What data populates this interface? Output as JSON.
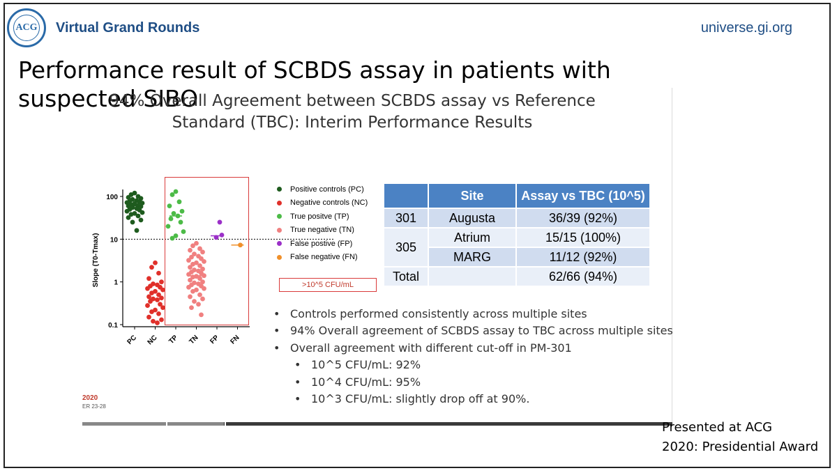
{
  "header": {
    "logo_text": "ACG",
    "brand": "Virtual Grand Rounds",
    "site": "universe.gi.org"
  },
  "slide_title": "Performance result of SCBDS assay in patients with suspected SIBO",
  "subtitle": "94% Overall Agreement between SCBDS assay vs Reference Standard (TBC): Interim Performance Results",
  "chart_data": {
    "type": "scatter",
    "ylabel": "Slope (T0-Tmax)",
    "yscale": "log",
    "ylim": [
      0.1,
      150
    ],
    "y_ticks": [
      "100",
      "10",
      "1",
      "0.1"
    ],
    "categories": [
      "PC",
      "NC",
      "TP",
      "TN",
      "FP",
      "FN"
    ],
    "reference_line": 10,
    "legend_position": "right",
    "box_label": ">10^5 CFU/mL",
    "series": [
      {
        "name": "Positive controls (PC)",
        "category": "PC",
        "color": "#1e5b1e",
        "median": 60,
        "values": [
          120,
          110,
          100,
          95,
          90,
          85,
          80,
          78,
          75,
          72,
          70,
          68,
          65,
          62,
          60,
          58,
          55,
          52,
          50,
          48,
          45,
          42,
          40,
          38,
          35,
          32,
          28,
          25,
          16
        ]
      },
      {
        "name": "Negative controls (NC)",
        "category": "NC",
        "color": "#e0302a",
        "median": 0.4,
        "values": [
          2.8,
          2.2,
          1.6,
          1.2,
          1.0,
          0.9,
          0.85,
          0.8,
          0.75,
          0.7,
          0.65,
          0.6,
          0.55,
          0.5,
          0.45,
          0.42,
          0.4,
          0.38,
          0.35,
          0.3,
          0.28,
          0.25,
          0.22,
          0.2,
          0.18,
          0.15,
          0.13,
          0.12,
          0.11
        ]
      },
      {
        "name": "True positve (TP)",
        "category": "TP",
        "color": "#4cbb47",
        "median": 35,
        "values": [
          130,
          110,
          75,
          60,
          45,
          40,
          35,
          30,
          25,
          20,
          15,
          12,
          10.5
        ]
      },
      {
        "name": "True negative (TN)",
        "category": "TN",
        "color": "#f08080",
        "median": 1.4,
        "values": [
          8,
          7,
          6,
          5.5,
          5,
          4.5,
          4,
          3.8,
          3.5,
          3.2,
          3,
          2.8,
          2.6,
          2.4,
          2.2,
          2,
          1.9,
          1.8,
          1.7,
          1.6,
          1.5,
          1.4,
          1.35,
          1.3,
          1.2,
          1.1,
          1.0,
          0.95,
          0.9,
          0.85,
          0.8,
          0.75,
          0.7,
          0.65,
          0.6,
          0.5,
          0.45,
          0.4,
          0.35,
          0.3,
          0.25,
          0.17
        ]
      },
      {
        "name": "False postive (FP)",
        "category": "FP",
        "color": "#9b30c8",
        "median": 12,
        "values": [
          25,
          12.5,
          11
        ]
      },
      {
        "name": "False negative (FN)",
        "category": "FN",
        "color": "#f0902a",
        "median": 7.3,
        "values": [
          7.3
        ]
      }
    ]
  },
  "table": {
    "headers": [
      "",
      "Site",
      "Assay vs TBC (10^5)"
    ],
    "rows": [
      {
        "group": "301",
        "site": "Augusta",
        "value": "36/39 (92%)"
      },
      {
        "group": "305",
        "site": "Atrium",
        "value": "15/15 (100%)"
      },
      {
        "group": "",
        "site": "MARG",
        "value": "11/12 (92%)"
      },
      {
        "group": "Total",
        "site": "",
        "value": "62/66 (94%)"
      }
    ]
  },
  "bullets": [
    "Controls performed consistently across multiple sites",
    "94% Overall agreement of SCBDS assay to TBC across multiple sites",
    "Overall agreement with different cut-off in PM-301"
  ],
  "sub_bullets": [
    "10^5 CFU/mL: 92%",
    "10^4 CFU/mL: 95%",
    "10^3 CFU/mL: slightly drop off at 90%."
  ],
  "video": {
    "badge": "2020",
    "badge_date": "ER 23-28",
    "progress_fraction": 0.24
  },
  "footer": {
    "line1": "Presented at ACG",
    "line2": "2020: Presidential Award"
  }
}
